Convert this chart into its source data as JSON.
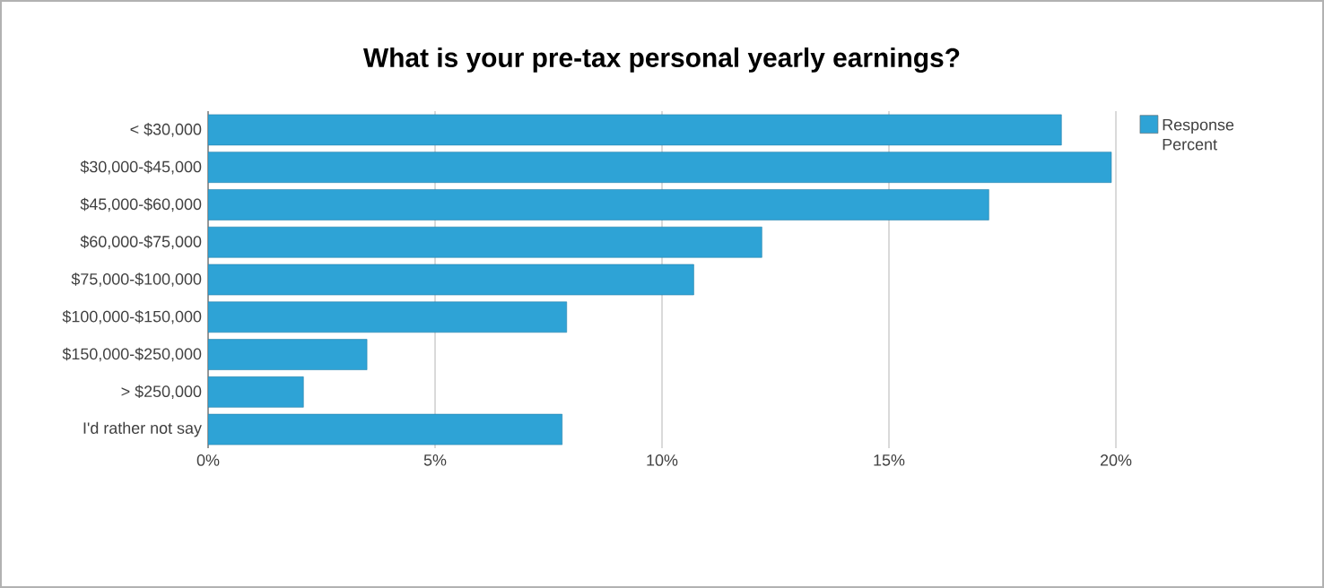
{
  "chart_data": {
    "type": "bar",
    "orientation": "horizontal",
    "title": "What is your pre-tax personal yearly earnings?",
    "categories": [
      "< $30,000",
      "$30,000-$45,000",
      "$45,000-$60,000",
      "$60,000-$75,000",
      "$75,000-$100,000",
      "$100,000-$150,000",
      "$150,000-$250,000",
      "> $250,000",
      "I'd rather not say"
    ],
    "series": [
      {
        "name": "Response Percent",
        "color": "#2ea3d6",
        "values": [
          18.8,
          19.9,
          17.2,
          12.2,
          10.7,
          7.9,
          3.5,
          2.1,
          7.8
        ]
      }
    ],
    "xlim": [
      0,
      20
    ],
    "xticks": [
      {
        "value": 0,
        "label": "0%"
      },
      {
        "value": 5,
        "label": "5%"
      },
      {
        "value": 10,
        "label": "10%"
      },
      {
        "value": 15,
        "label": "15%"
      },
      {
        "value": 20,
        "label": "20%"
      }
    ],
    "grid": "x",
    "legend": "top right"
  }
}
